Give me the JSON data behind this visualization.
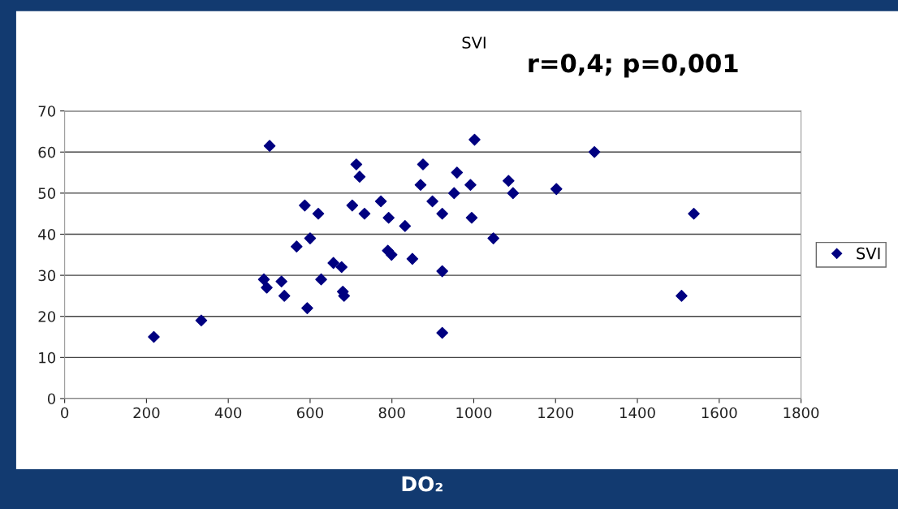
{
  "chart_data": {
    "type": "scatter",
    "title": "SVI",
    "xlabel": "DO₂",
    "annotations": [
      "r=0,4; p=0,001"
    ],
    "series": [
      {
        "name": "SVI",
        "color": "#000080",
        "x": [
          218,
          334,
          501,
          713,
          721,
          876,
          870,
          959,
          952,
          587,
          620,
          703,
          733,
          773,
          792,
          899,
          923,
          832,
          600,
          567,
          790,
          799,
          850,
          657,
          677,
          923,
          487,
          494,
          530,
          537,
          627,
          680,
          683,
          593,
          923,
          1002,
          992,
          995,
          1085,
          1096,
          1048,
          1202,
          1295,
          1538,
          1508
        ],
        "values": [
          15,
          19,
          61.5,
          57,
          54,
          57,
          52,
          55,
          50,
          47,
          45,
          47,
          45,
          48,
          44,
          48,
          45,
          42,
          39,
          37,
          36,
          35,
          34,
          33,
          32,
          31,
          29,
          27,
          28.5,
          25,
          29,
          26,
          25,
          22,
          16,
          63,
          52,
          44,
          53,
          50,
          39,
          51,
          60,
          45,
          25
        ]
      }
    ],
    "xlim": [
      0,
      1800
    ],
    "xticks": [
      0,
      200,
      400,
      600,
      800,
      1000,
      1200,
      1400,
      1600,
      1800
    ],
    "ylim": [
      0,
      70
    ],
    "yticks": [
      0,
      10,
      20,
      30,
      40,
      50,
      60,
      70
    ],
    "grid": "y",
    "legend": "right",
    "marker": "diamond"
  }
}
